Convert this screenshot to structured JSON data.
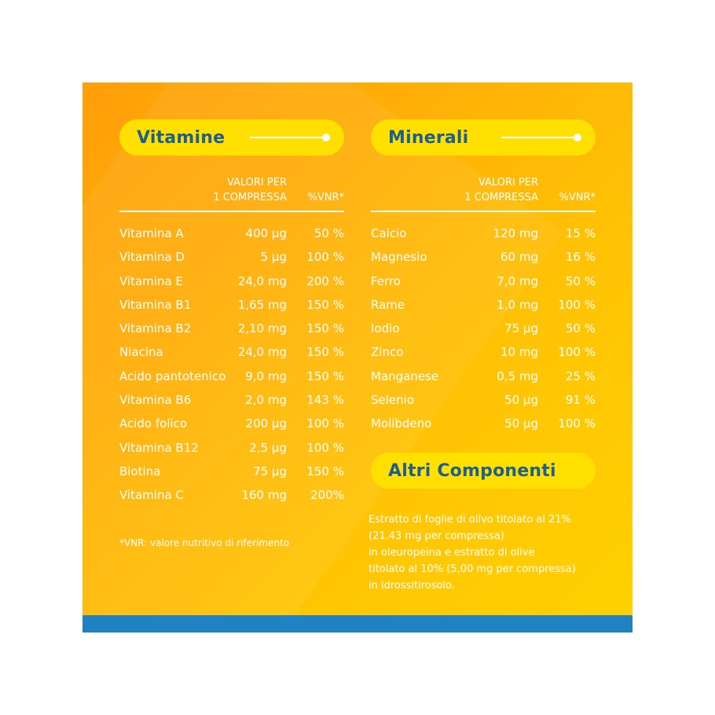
{
  "vitamine": {
    "title": "Vitamine",
    "header_qty_line1": "VALORI PER",
    "header_qty_line2": "1 COMPRESSA",
    "header_pct": "%VNR*",
    "rows": [
      {
        "name": "Vitamina A",
        "qty": "400 µg",
        "pct": "50 %"
      },
      {
        "name": "Vitamina D",
        "qty": "5 µg",
        "pct": "100 %"
      },
      {
        "name": "Vitamina E",
        "qty": "24,0 mg",
        "pct": "200 %"
      },
      {
        "name": "Vitamina B1",
        "qty": "1,65 mg",
        "pct": "150 %"
      },
      {
        "name": "Vitamina B2",
        "qty": "2,10 mg",
        "pct": "150 %"
      },
      {
        "name": "Niacina",
        "qty": "24,0 mg",
        "pct": "150 %"
      },
      {
        "name": "Acido pantotenico",
        "qty": "9,0 mg",
        "pct": "150 %"
      },
      {
        "name": "Vitamina B6",
        "qty": "2,0 mg",
        "pct": "143 %"
      },
      {
        "name": "Acido folico",
        "qty": "200 µg",
        "pct": "100 %"
      },
      {
        "name": "Vitamina B12",
        "qty": "2,5 µg",
        "pct": "100 %"
      },
      {
        "name": "Biotina",
        "qty": "75 µg",
        "pct": "150 %"
      },
      {
        "name": "Vitamina C",
        "qty": "160 mg",
        "pct": "200%"
      }
    ],
    "footnote": "*VNR: valore nutritivo di riferimento"
  },
  "minerali": {
    "title": "Minerali",
    "header_qty_line1": "VALORI PER",
    "header_qty_line2": "1 COMPRESSA",
    "header_pct": "%VNR*",
    "rows": [
      {
        "name": "Calcio",
        "qty": "120 mg",
        "pct": "15 %"
      },
      {
        "name": "Magnesio",
        "qty": "60 mg",
        "pct": "16 %"
      },
      {
        "name": "Ferro",
        "qty": "7,0 mg",
        "pct": "50 %"
      },
      {
        "name": "Rame",
        "qty": "1,0 mg",
        "pct": "100 %"
      },
      {
        "name": "Iodio",
        "qty": "75 µg",
        "pct": "50 %"
      },
      {
        "name": "Zinco",
        "qty": "10 mg",
        "pct": "100 %"
      },
      {
        "name": "Manganese",
        "qty": "0,5 mg",
        "pct": "25 %"
      },
      {
        "name": "Selenio",
        "qty": "50 µg",
        "pct": "91 %"
      },
      {
        "name": "Molibdeno",
        "qty": "50 µg",
        "pct": "100 %"
      }
    ]
  },
  "altri": {
    "title": "Altri Componenti",
    "lines": [
      "Estratto di foglie di olivo titolato al 21%",
      "(21.43 mg per compressa)",
      "in oleuropeina e estratto di olive",
      "titolato al 10% (5,00 mg per compressa)",
      "in idrossitirosolo."
    ]
  },
  "colors": {
    "pill": "#ffe000",
    "title_text": "#1f5f8c",
    "bottom_bar": "#1f82c3",
    "background_start": "#ff9f0a",
    "background_end": "#ffd200"
  }
}
